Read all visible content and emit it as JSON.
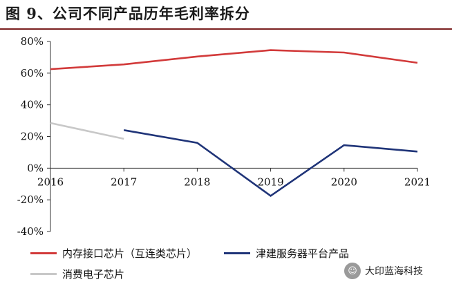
{
  "title": "图 9、公司不同产品历年毛利率拆分",
  "watermark": "大印蓝海科技",
  "chart_data": {
    "type": "line",
    "title": "图 9、公司不同产品历年毛利率拆分",
    "x": [
      "2016",
      "2017",
      "2018",
      "2019",
      "2020",
      "2021"
    ],
    "ylim": [
      -40,
      80
    ],
    "yticks": [
      -40,
      -20,
      0,
      20,
      40,
      60,
      80
    ],
    "ytick_labels": [
      "-40%",
      "-20%",
      "0%",
      "20%",
      "40%",
      "60%",
      "80%"
    ],
    "grid": false,
    "legend_position": "bottom",
    "series": [
      {
        "name": "内存接口芯片（互连类芯片）",
        "color": "#d23a3a",
        "values": [
          62.5,
          65.5,
          70.5,
          74.5,
          73,
          66.5
        ]
      },
      {
        "name": "津建服务器平台产品",
        "color": "#1f3478",
        "values": [
          null,
          24,
          16,
          -17.5,
          14.5,
          10.5
        ]
      },
      {
        "name": "消费电子芯片",
        "color": "#c8c8c8",
        "values": [
          28.5,
          18.5,
          null,
          null,
          null,
          null
        ]
      }
    ]
  }
}
